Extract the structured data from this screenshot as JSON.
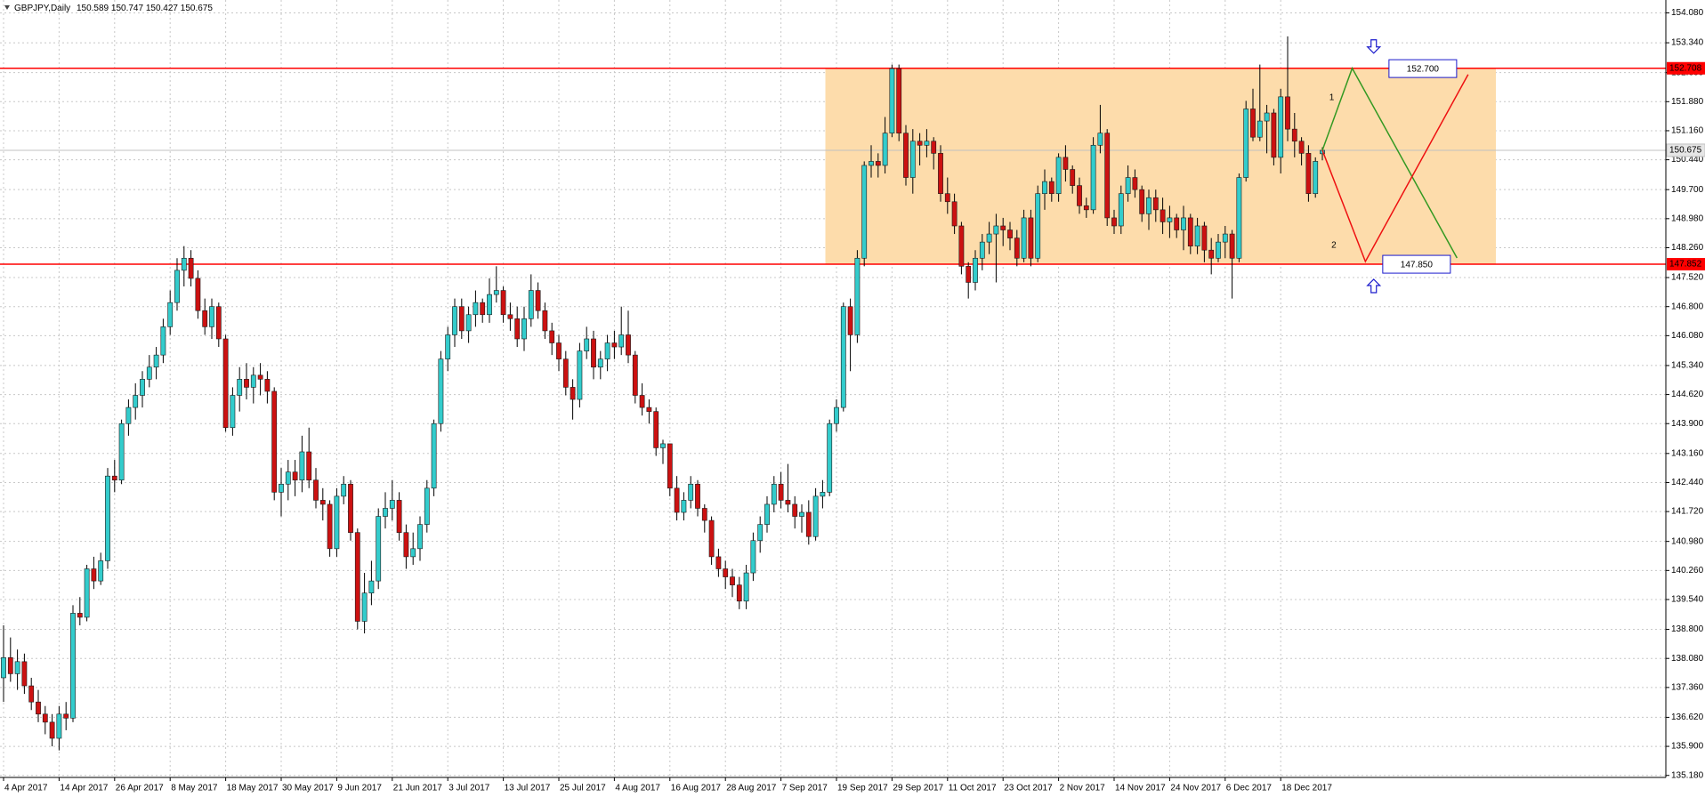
{
  "chart_data": {
    "type": "candlestick",
    "title": "GBPJPY,Daily",
    "categories": [
      "4 Apr 2017",
      null,
      null,
      null,
      null,
      null,
      null,
      null,
      "14 Apr 2017",
      null,
      null,
      null,
      null,
      null,
      null,
      null,
      "26 Apr 2017",
      null,
      null,
      null,
      null,
      null,
      null,
      null,
      "8 May 2017",
      null,
      null,
      null,
      null,
      null,
      null,
      null,
      "18 May 2017",
      null,
      null,
      null,
      null,
      null,
      null,
      null,
      "30 May 2017",
      null,
      null,
      null,
      null,
      null,
      null,
      null,
      "9 Jun 2017",
      null,
      null,
      null,
      null,
      null,
      null,
      null,
      "21 Jun 2017",
      null,
      null,
      null,
      null,
      null,
      null,
      null,
      "3 Jul 2017",
      null,
      null,
      null,
      null,
      null,
      null,
      null,
      "13 Jul 2017",
      null,
      null,
      null,
      null,
      null,
      null,
      null,
      "25 Jul 2017",
      null,
      null,
      null,
      null,
      null,
      null,
      null,
      "4 Aug 2017",
      null,
      null,
      null,
      null,
      null,
      null,
      null,
      "16 Aug 2017",
      null,
      null,
      null,
      null,
      null,
      null,
      null,
      "28 Aug 2017",
      null,
      null,
      null,
      null,
      null,
      null,
      null,
      "7 Sep 2017",
      null,
      null,
      null,
      null,
      null,
      null,
      null,
      "19 Sep 2017",
      null,
      null,
      null,
      null,
      null,
      null,
      null,
      "29 Sep 2017",
      null,
      null,
      null,
      null,
      null,
      null,
      null,
      "11 Oct 2017",
      null,
      null,
      null,
      null,
      null,
      null,
      null,
      "23 Oct 2017",
      null,
      null,
      null,
      null,
      null,
      null,
      null,
      "2 Nov 2017",
      null,
      null,
      null,
      null,
      null,
      null,
      null,
      "14 Nov 2017",
      null,
      null,
      null,
      null,
      null,
      null,
      null,
      "24 Nov 2017",
      null,
      null,
      null,
      null,
      null,
      null,
      null,
      "6 Dec 2017",
      null,
      null,
      null,
      null,
      null,
      null,
      null,
      "18 Dec 2017",
      null,
      null,
      null,
      null,
      null,
      null
    ],
    "open": [
      137.6,
      138.1,
      137.7,
      138.0,
      137.4,
      137.0,
      136.7,
      136.5,
      136.1,
      136.7,
      136.6,
      139.2,
      139.1,
      140.3,
      140.0,
      140.5,
      142.6,
      142.5,
      143.9,
      144.3,
      144.6,
      145.0,
      145.3,
      145.6,
      146.3,
      146.9,
      147.7,
      148.0,
      147.5,
      146.7,
      146.3,
      146.8,
      146.0,
      143.8,
      144.6,
      145.0,
      144.8,
      145.1,
      145.0,
      144.7,
      142.2,
      142.4,
      142.7,
      142.5,
      143.2,
      142.5,
      142.0,
      141.9,
      140.8,
      142.1,
      142.4,
      141.2,
      139.0,
      139.7,
      140.0,
      141.6,
      141.8,
      142.0,
      141.2,
      140.6,
      140.8,
      141.4,
      142.3,
      143.9,
      145.5,
      146.1,
      146.8,
      146.2,
      146.6,
      146.9,
      146.6,
      147.1,
      147.2,
      146.6,
      146.5,
      146.0,
      146.5,
      147.2,
      146.7,
      146.2,
      145.9,
      145.5,
      144.8,
      144.5,
      145.7,
      146.0,
      145.3,
      145.5,
      145.9,
      145.8,
      146.1,
      145.6,
      144.6,
      144.3,
      144.2,
      143.3,
      143.4,
      142.3,
      141.7,
      142.0,
      142.4,
      141.8,
      141.5,
      140.6,
      140.3,
      140.1,
      139.9,
      139.5,
      140.2,
      141.0,
      141.4,
      141.9,
      142.4,
      142.0,
      141.9,
      141.6,
      141.7,
      141.1,
      142.1,
      142.2,
      143.9,
      144.3,
      146.8,
      146.1,
      148.0,
      150.3,
      150.4,
      150.3,
      151.1,
      152.7,
      151.1,
      150.0,
      150.9,
      150.8,
      150.9,
      150.6,
      149.6,
      149.4,
      148.8,
      147.8,
      147.4,
      148.0,
      148.4,
      148.6,
      148.8,
      148.7,
      148.5,
      148.0,
      149.0,
      148.0,
      149.6,
      149.9,
      149.6,
      150.5,
      150.2,
      149.8,
      149.3,
      149.2,
      150.8,
      151.1,
      149.0,
      148.8,
      149.6,
      150.0,
      149.7,
      149.1,
      149.5,
      149.2,
      148.9,
      149.0,
      148.7,
      149.0,
      148.3,
      148.8,
      148.2,
      148.0,
      148.4,
      148.6,
      148.0,
      150.0,
      151.7,
      151.0,
      151.4,
      151.6,
      150.5,
      152.0,
      151.2,
      150.9,
      150.6,
      149.6,
      150.589
    ],
    "high": [
      138.9,
      138.6,
      138.3,
      138.2,
      137.6,
      137.3,
      136.9,
      136.7,
      136.9,
      137.0,
      139.4,
      139.6,
      140.4,
      140.6,
      140.7,
      142.8,
      143.0,
      144.0,
      144.5,
      144.9,
      145.2,
      145.6,
      145.8,
      146.5,
      147.2,
      148.0,
      148.3,
      148.2,
      147.7,
      147.0,
      147.0,
      146.9,
      146.1,
      144.8,
      145.3,
      145.4,
      145.3,
      145.4,
      145.2,
      144.8,
      142.8,
      143.0,
      143.0,
      143.6,
      143.8,
      142.8,
      142.3,
      142.0,
      142.3,
      142.6,
      142.5,
      141.3,
      140.2,
      140.5,
      141.8,
      142.2,
      142.5,
      142.2,
      141.4,
      141.2,
      141.6,
      142.5,
      144.0,
      145.7,
      146.3,
      147.0,
      147.0,
      146.8,
      147.2,
      147.0,
      147.5,
      147.8,
      147.3,
      146.9,
      146.8,
      146.8,
      147.6,
      147.4,
      146.9,
      146.4,
      146.1,
      145.7,
      145.0,
      145.9,
      146.3,
      146.2,
      145.7,
      146.1,
      146.2,
      146.8,
      146.7,
      145.7,
      144.9,
      144.5,
      144.3,
      143.5,
      143.4,
      142.6,
      142.2,
      142.6,
      142.5,
      141.9,
      141.6,
      140.8,
      140.5,
      140.3,
      140.1,
      140.4,
      141.2,
      141.6,
      142.1,
      142.6,
      142.7,
      142.9,
      142.1,
      141.9,
      142.0,
      142.3,
      142.5,
      144.0,
      144.5,
      146.9,
      147.0,
      148.2,
      150.4,
      150.8,
      150.6,
      151.5,
      152.8,
      152.8,
      151.3,
      151.2,
      151.1,
      151.2,
      151.0,
      150.8,
      150.0,
      149.6,
      148.9,
      147.9,
      148.2,
      148.6,
      148.9,
      149.1,
      149.0,
      148.9,
      148.7,
      149.2,
      149.2,
      149.8,
      150.2,
      150.0,
      150.6,
      150.8,
      150.3,
      150.0,
      149.5,
      151.0,
      151.8,
      151.2,
      149.2,
      149.8,
      150.3,
      150.2,
      149.8,
      149.7,
      149.7,
      149.5,
      149.3,
      149.1,
      149.3,
      149.1,
      149.0,
      148.9,
      148.5,
      148.6,
      148.8,
      148.7,
      150.1,
      151.9,
      152.2,
      152.8,
      151.8,
      151.7,
      152.2,
      153.5,
      151.6,
      151.0,
      150.8,
      150.5,
      150.747
    ],
    "low": [
      137.0,
      137.5,
      137.3,
      137.2,
      136.8,
      136.5,
      136.2,
      135.9,
      135.8,
      136.3,
      136.5,
      138.9,
      139.0,
      139.8,
      139.9,
      140.3,
      142.2,
      142.4,
      143.6,
      144.0,
      144.3,
      144.8,
      145.0,
      145.4,
      146.1,
      146.7,
      147.3,
      147.3,
      146.5,
      146.1,
      146.0,
      145.8,
      143.7,
      143.6,
      144.2,
      144.5,
      144.4,
      144.6,
      144.4,
      142.0,
      141.6,
      142.0,
      142.1,
      142.2,
      142.3,
      141.8,
      141.5,
      140.6,
      140.6,
      141.9,
      141.0,
      138.8,
      138.7,
      139.4,
      139.8,
      141.3,
      141.5,
      141.0,
      140.3,
      140.4,
      140.5,
      141.2,
      142.1,
      143.7,
      145.2,
      145.8,
      146.0,
      145.9,
      146.3,
      146.4,
      146.4,
      146.9,
      146.4,
      146.2,
      145.8,
      145.7,
      146.3,
      146.5,
      146.0,
      145.6,
      145.2,
      144.6,
      144.0,
      144.3,
      145.5,
      145.0,
      145.0,
      145.2,
      145.5,
      145.6,
      145.4,
      144.4,
      144.1,
      143.9,
      143.1,
      142.9,
      142.1,
      141.5,
      141.5,
      141.8,
      141.6,
      141.2,
      140.4,
      140.1,
      139.8,
      139.6,
      139.3,
      139.3,
      140.0,
      140.7,
      141.2,
      141.7,
      141.8,
      141.7,
      141.3,
      141.2,
      140.9,
      141.0,
      141.8,
      142.1,
      143.7,
      144.2,
      145.2,
      145.9,
      147.8,
      150.0,
      150.0,
      150.1,
      151.0,
      150.9,
      149.8,
      149.6,
      150.3,
      150.5,
      150.2,
      149.4,
      149.1,
      148.6,
      147.6,
      147.0,
      147.2,
      147.7,
      148.1,
      147.4,
      148.3,
      148.2,
      147.8,
      147.9,
      147.8,
      147.9,
      149.2,
      149.4,
      149.4,
      149.9,
      149.6,
      149.1,
      149.0,
      149.1,
      150.6,
      148.8,
      148.6,
      148.6,
      149.4,
      149.5,
      148.9,
      148.7,
      148.9,
      148.6,
      148.5,
      148.5,
      148.2,
      148.1,
      148.1,
      147.9,
      147.6,
      147.9,
      148.0,
      147.0,
      147.9,
      149.9,
      150.9,
      150.9,
      150.6,
      150.3,
      150.1,
      150.9,
      150.5,
      150.3,
      149.4,
      149.5,
      150.427
    ],
    "close": [
      138.1,
      137.7,
      138.0,
      137.4,
      137.0,
      136.7,
      136.5,
      136.1,
      136.7,
      136.6,
      139.2,
      139.1,
      140.3,
      140.0,
      140.5,
      142.6,
      142.5,
      143.9,
      144.3,
      144.6,
      145.0,
      145.3,
      145.6,
      146.3,
      146.9,
      147.7,
      148.0,
      147.5,
      146.7,
      146.3,
      146.8,
      146.0,
      143.8,
      144.6,
      145.0,
      144.8,
      145.1,
      145.0,
      144.7,
      142.2,
      142.4,
      142.7,
      142.5,
      143.2,
      142.5,
      142.0,
      141.9,
      140.8,
      142.1,
      142.4,
      141.2,
      139.0,
      139.7,
      140.0,
      141.6,
      141.8,
      142.0,
      141.2,
      140.6,
      140.8,
      141.4,
      142.3,
      143.9,
      145.5,
      146.1,
      146.8,
      146.2,
      146.6,
      146.9,
      146.6,
      147.1,
      147.2,
      146.6,
      146.5,
      146.0,
      146.5,
      147.2,
      146.7,
      146.2,
      145.9,
      145.5,
      144.8,
      144.5,
      145.7,
      146.0,
      145.3,
      145.5,
      145.9,
      145.8,
      146.1,
      145.6,
      144.6,
      144.3,
      144.2,
      143.3,
      143.4,
      142.3,
      141.7,
      142.0,
      142.4,
      141.8,
      141.5,
      140.6,
      140.3,
      140.1,
      139.9,
      139.5,
      140.2,
      141.0,
      141.4,
      141.9,
      142.4,
      142.0,
      141.9,
      141.6,
      141.7,
      141.1,
      142.1,
      142.2,
      143.9,
      144.3,
      146.8,
      146.1,
      148.0,
      150.3,
      150.4,
      150.3,
      151.1,
      152.7,
      151.1,
      150.0,
      150.9,
      150.8,
      150.9,
      150.6,
      149.6,
      149.4,
      148.8,
      147.8,
      147.4,
      148.0,
      148.4,
      148.6,
      148.8,
      148.7,
      148.5,
      148.0,
      149.0,
      148.0,
      149.6,
      149.9,
      149.6,
      150.5,
      150.2,
      149.8,
      149.3,
      149.2,
      150.8,
      151.1,
      149.0,
      148.8,
      149.6,
      150.0,
      149.7,
      149.1,
      149.5,
      149.2,
      148.9,
      149.0,
      148.7,
      149.0,
      148.3,
      148.8,
      148.2,
      148.0,
      148.4,
      148.6,
      148.0,
      150.0,
      151.7,
      151.0,
      151.4,
      151.6,
      150.5,
      152.0,
      151.2,
      150.9,
      150.6,
      149.6,
      150.4,
      150.675
    ],
    "up_color": "#33cccc",
    "down_color": "#cc1111",
    "wick_color": "#000000",
    "ylim": [
      135.13,
      154.4
    ],
    "yticks": [
      {
        "value": 154.08,
        "label": "154.080"
      },
      {
        "value": 153.34,
        "label": "153.340"
      },
      {
        "value": 152.6,
        "label": "152.600"
      },
      {
        "value": 151.88,
        "label": "151.880"
      },
      {
        "value": 151.16,
        "label": "151.160"
      },
      {
        "value": 150.44,
        "label": "150.440"
      },
      {
        "value": 149.7,
        "label": "149.700"
      },
      {
        "value": 148.98,
        "label": "148.980"
      },
      {
        "value": 148.26,
        "label": "148.260"
      },
      {
        "value": 147.52,
        "label": "147.520"
      },
      {
        "value": 146.8,
        "label": "146.800"
      },
      {
        "value": 146.08,
        "label": "146.080"
      },
      {
        "value": 145.34,
        "label": "145.340"
      },
      {
        "value": 144.62,
        "label": "144.620"
      },
      {
        "value": 143.9,
        "label": "143.900"
      },
      {
        "value": 143.16,
        "label": "143.160"
      },
      {
        "value": 142.44,
        "label": "142.440"
      },
      {
        "value": 141.72,
        "label": "141.720"
      },
      {
        "value": 140.98,
        "label": "140.980"
      },
      {
        "value": 140.26,
        "label": "140.260"
      },
      {
        "value": 139.54,
        "label": "139.540"
      },
      {
        "value": 138.8,
        "label": "138.800"
      },
      {
        "value": 138.08,
        "label": "138.080"
      },
      {
        "value": 137.36,
        "label": "137.360"
      },
      {
        "value": 136.62,
        "label": "136.620"
      },
      {
        "value": 135.9,
        "label": "135.900"
      },
      {
        "value": 135.18,
        "label": "135.180"
      }
    ],
    "grid": true,
    "grid_color": "#c8c8c8",
    "current_price_color": "#c0c0c0",
    "levels": [
      {
        "value": 152.708,
        "color": "#ff0000"
      },
      {
        "value": 147.852,
        "color": "#ff0000"
      }
    ],
    "zone_color": "#fddcab",
    "targets": [
      {
        "value": 152.7,
        "label": "152.700"
      },
      {
        "value": 147.85,
        "label": "147.850"
      }
    ],
    "target_color": "#1a1acc",
    "projections": [
      {
        "label": "1",
        "color": "#339922"
      },
      {
        "label": "2",
        "color": "#ee1111"
      }
    ]
  }
}
